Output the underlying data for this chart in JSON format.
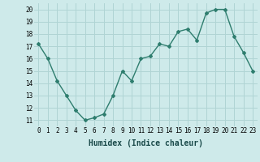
{
  "x": [
    0,
    1,
    2,
    3,
    4,
    5,
    6,
    7,
    8,
    9,
    10,
    11,
    12,
    13,
    14,
    15,
    16,
    17,
    18,
    19,
    20,
    21,
    22,
    23
  ],
  "y": [
    17.2,
    16.0,
    14.2,
    13.0,
    11.8,
    11.0,
    11.2,
    11.5,
    13.0,
    15.0,
    14.2,
    16.0,
    16.2,
    17.2,
    17.0,
    18.2,
    18.4,
    17.5,
    19.7,
    20.0,
    20.0,
    17.8,
    16.5,
    15.0
  ],
  "line_color": "#2e7d6e",
  "bg_color": "#ceeaea",
  "grid_color": "#b0d4d4",
  "xlabel": "Humidex (Indice chaleur)",
  "ylim": [
    10.5,
    20.5
  ],
  "xlim": [
    -0.5,
    23.5
  ],
  "yticks": [
    11,
    12,
    13,
    14,
    15,
    16,
    17,
    18,
    19,
    20
  ],
  "xticks": [
    0,
    1,
    2,
    3,
    4,
    5,
    6,
    7,
    8,
    9,
    10,
    11,
    12,
    13,
    14,
    15,
    16,
    17,
    18,
    19,
    20,
    21,
    22,
    23
  ],
  "marker": "D",
  "marker_size": 2,
  "line_width": 1.0,
  "tick_fontsize": 5.5,
  "xlabel_fontsize": 7
}
